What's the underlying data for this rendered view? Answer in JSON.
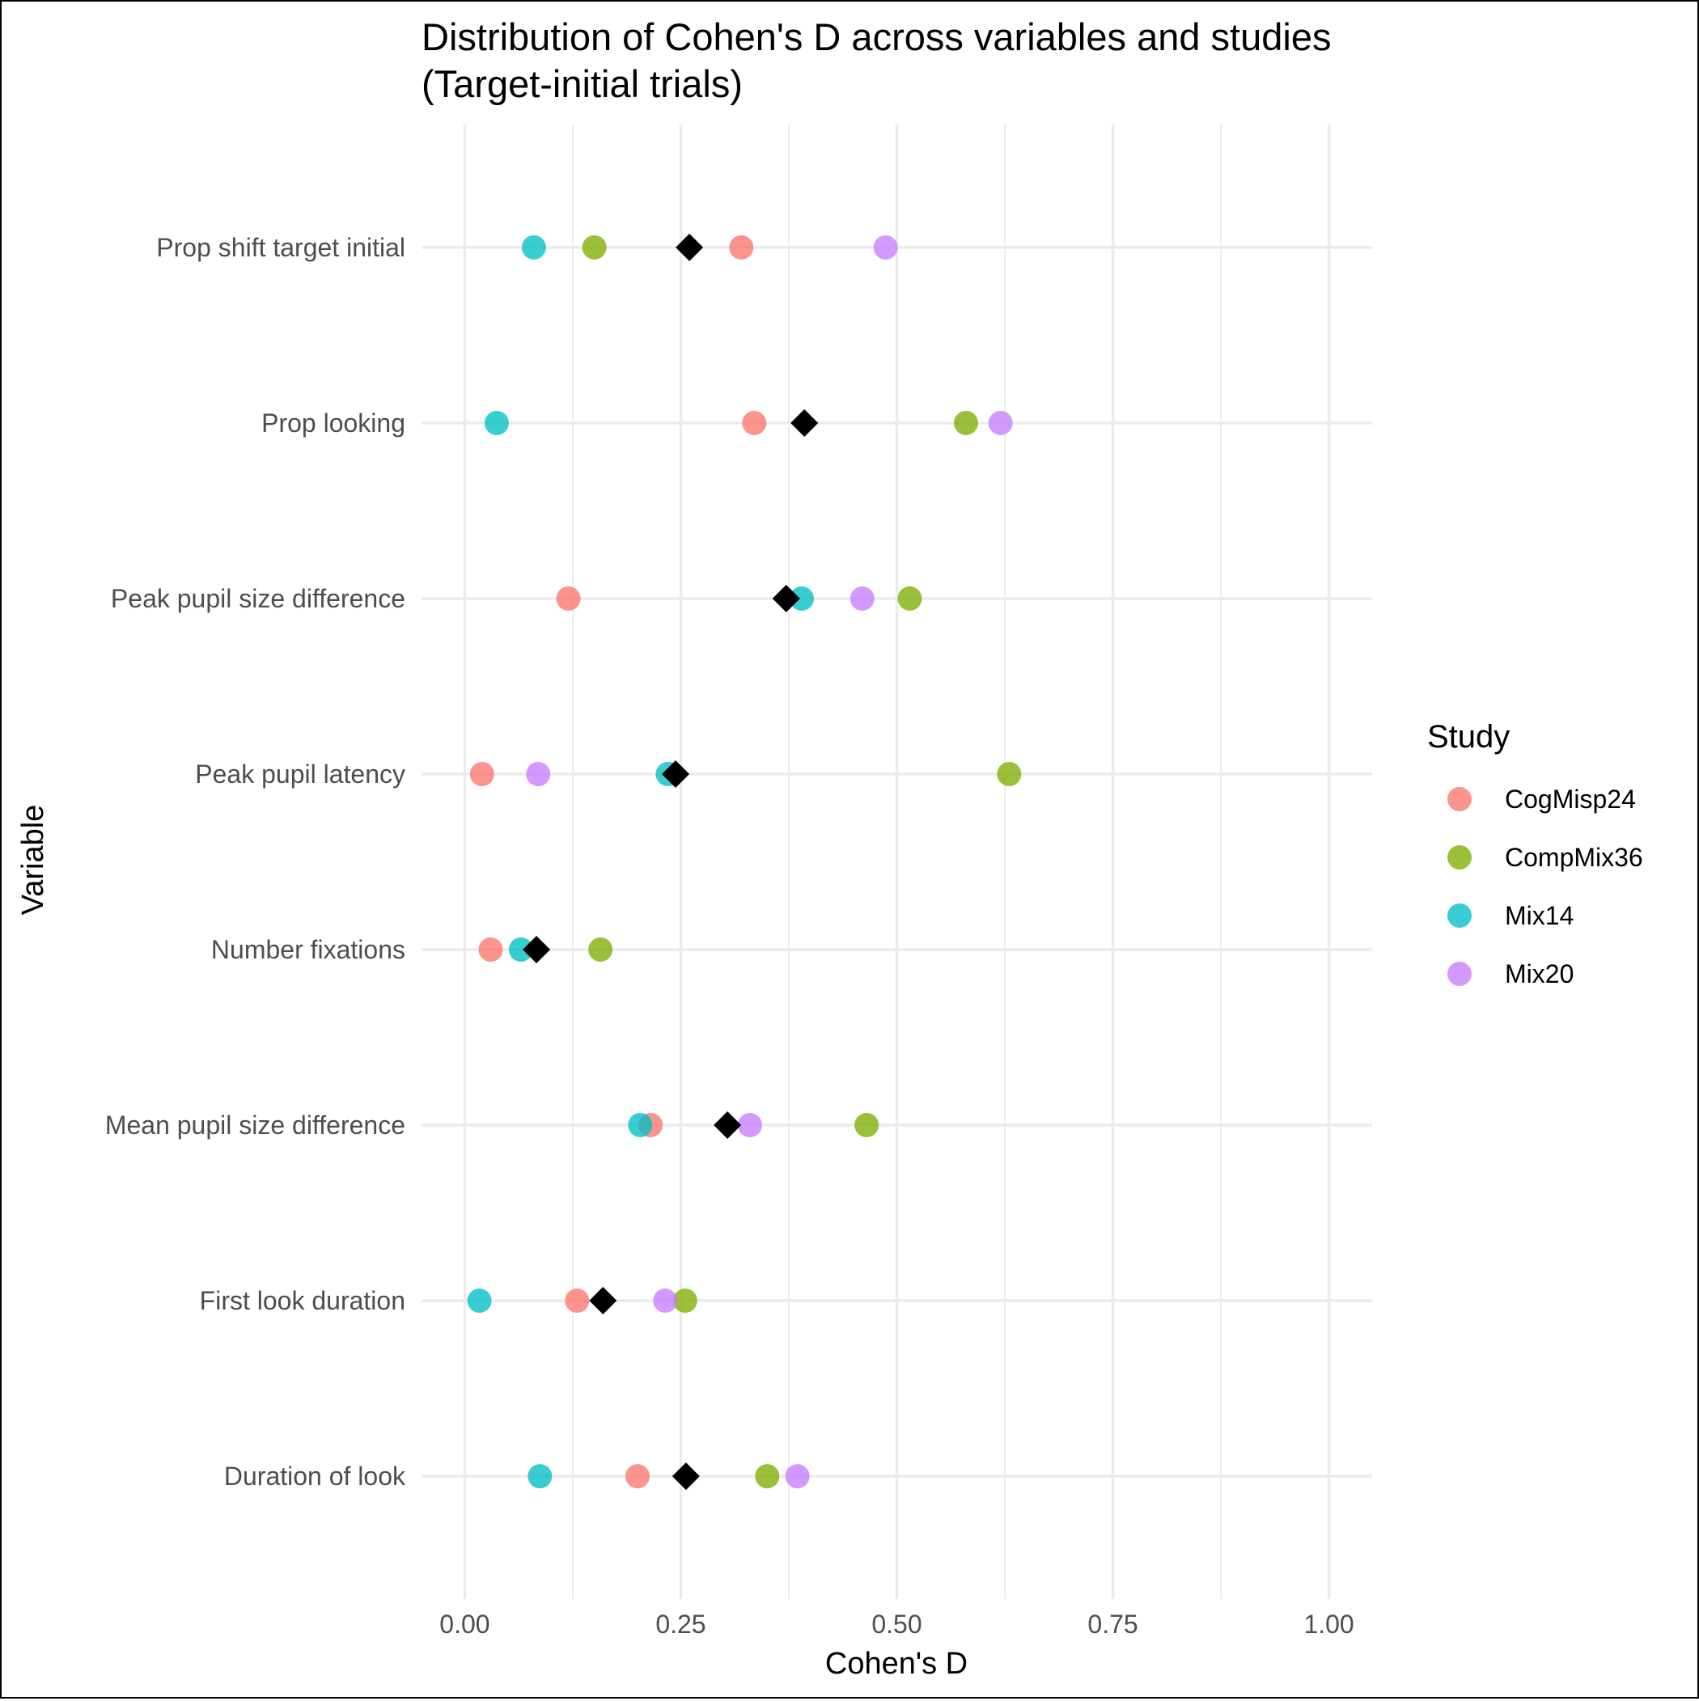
{
  "chart_data": {
    "type": "scatter",
    "title": "Distribution of Cohen's D across variables and studies",
    "subtitle": "(Target-initial trials)",
    "xlabel": "Cohen's D",
    "ylabel": "Variable",
    "xlim": [
      -0.05,
      1.05
    ],
    "x_ticks": [
      0,
      0.25,
      0.5,
      0.75,
      1
    ],
    "x_tick_labels": [
      "0.00",
      "0.25",
      "0.50",
      "0.75",
      "1.00"
    ],
    "grid": true,
    "legend_position": "right",
    "legend_title": "Study",
    "categories": [
      "Duration of look",
      "First look duration",
      "Mean pupil size difference",
      "Number fixations",
      "Peak pupil latency",
      "Peak pupil size difference",
      "Prop looking",
      "Prop shift target initial"
    ],
    "series": [
      {
        "name": "CogMisp24",
        "color": "#F8766D",
        "values": [
          0.2,
          0.13,
          0.215,
          0.03,
          0.02,
          0.12,
          0.335,
          0.32
        ]
      },
      {
        "name": "CompMix36",
        "color": "#7CAE00",
        "values": [
          0.35,
          0.255,
          0.465,
          0.157,
          0.63,
          0.515,
          0.58,
          0.15
        ]
      },
      {
        "name": "Mix14",
        "color": "#00BFC4",
        "values": [
          0.087,
          0.017,
          0.203,
          0.065,
          0.235,
          0.39,
          0.037,
          0.08
        ]
      },
      {
        "name": "Mix20",
        "color": "#C77CFF",
        "values": [
          0.385,
          0.232,
          0.33,
          null,
          0.085,
          0.46,
          0.62,
          0.487
        ]
      }
    ],
    "mean_marker": {
      "shape": "diamond",
      "color": "#000000",
      "values": [
        0.256,
        0.16,
        0.304,
        0.083,
        0.244,
        0.372,
        0.393,
        0.26
      ]
    }
  }
}
